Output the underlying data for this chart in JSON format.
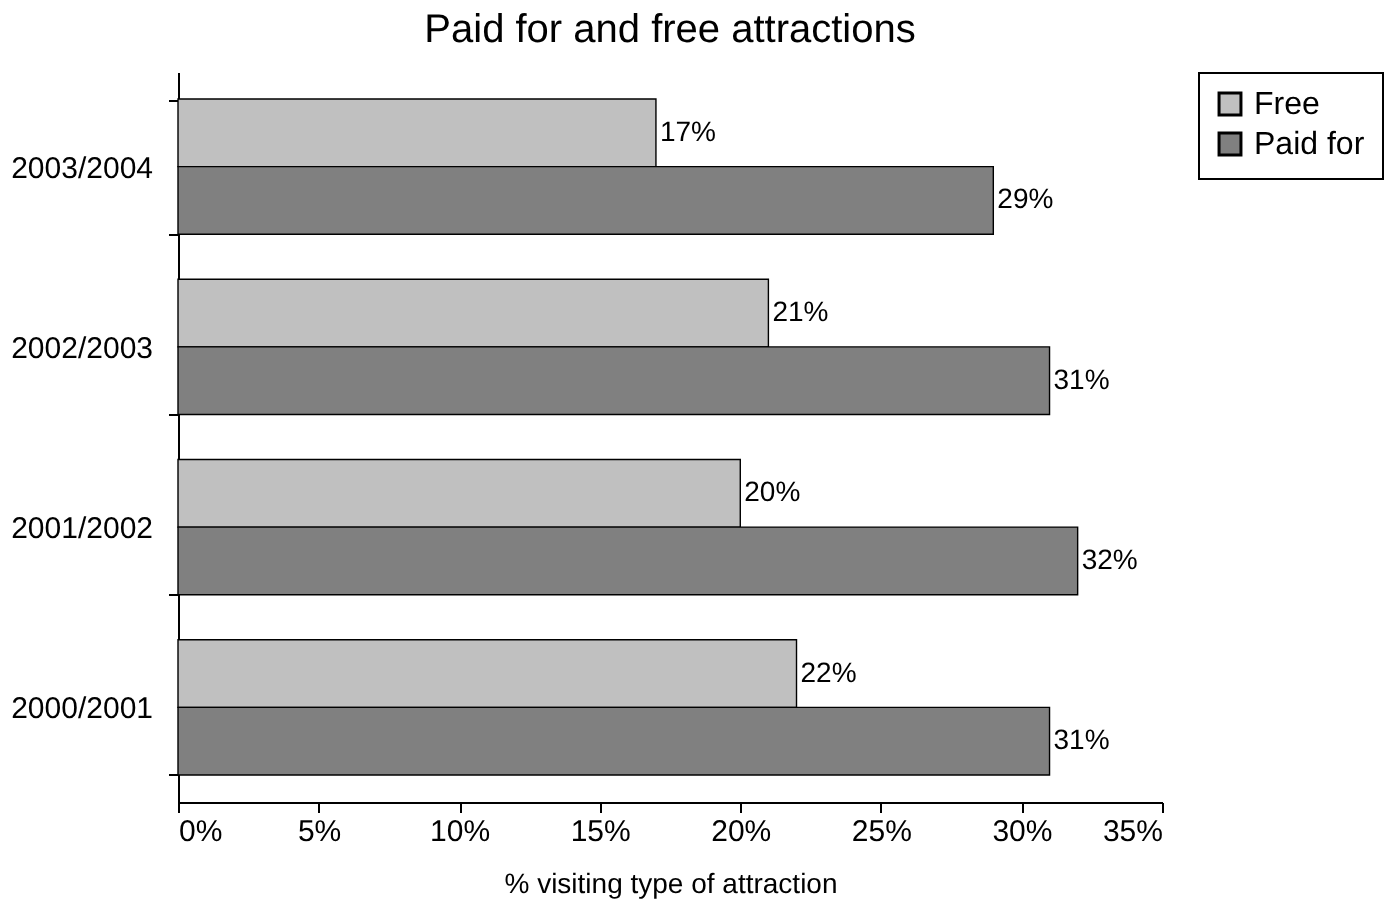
{
  "chart_data": {
    "type": "bar",
    "orientation": "horizontal",
    "title": "Paid for and free attractions",
    "xlabel": "% visiting  type of attraction",
    "categories": [
      "2003/2004",
      "2002/2003",
      "2001/2002",
      "2000/2001"
    ],
    "series": [
      {
        "name": "Free",
        "color": "#c0c0c0",
        "values": [
          17,
          21,
          20,
          22
        ],
        "value_labels": [
          "17%",
          "21%",
          "20%",
          "22%"
        ]
      },
      {
        "name": "Paid for",
        "color": "#808080",
        "values": [
          29,
          31,
          32,
          31
        ],
        "value_labels": [
          "29%",
          "31%",
          "32%",
          "31%"
        ]
      }
    ],
    "xlim": [
      0,
      35
    ],
    "xticks": [
      {
        "value": 0,
        "label": "0%"
      },
      {
        "value": 5,
        "label": "5%"
      },
      {
        "value": 10,
        "label": "10%"
      },
      {
        "value": 15,
        "label": "15%"
      },
      {
        "value": 20,
        "label": "20%"
      },
      {
        "value": 25,
        "label": "25%"
      },
      {
        "value": 30,
        "label": "30%"
      },
      {
        "value": 35,
        "label": "35%"
      }
    ],
    "grid": false,
    "legend": "top right"
  }
}
